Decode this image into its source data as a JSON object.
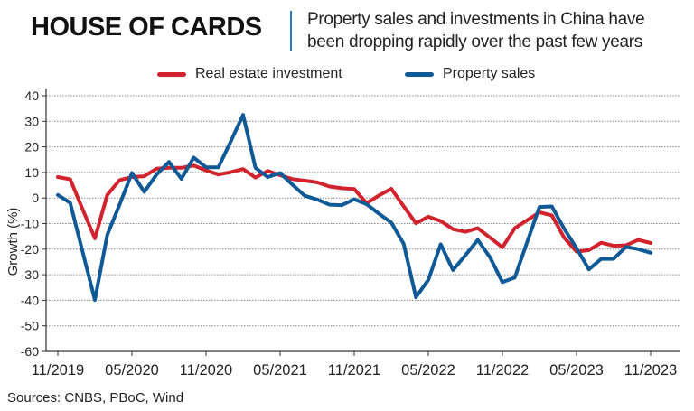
{
  "header": {
    "title": "HOUSE OF CARDS",
    "subtitle_line1": "Property sales and investments in China have",
    "subtitle_line2": "been dropping rapidly over the past few years"
  },
  "footer": {
    "source": "Sources: CNBS, PBoC, Wind"
  },
  "colors": {
    "real_estate": "#d2222d",
    "property_sales": "#0f5a96",
    "accent_line": "#2a7bbf"
  },
  "chart_data": {
    "type": "line",
    "title": "HOUSE OF CARDS",
    "ylabel": "Growth (%)",
    "xlabel": "",
    "ylim": [
      -60,
      40
    ],
    "yticks": [
      40,
      30,
      20,
      10,
      0,
      -10,
      -20,
      -30,
      -40,
      -50,
      -60
    ],
    "xtick_labels": [
      "11/2019",
      "05/2020",
      "11/2020",
      "05/2021",
      "11/2021",
      "05/2022",
      "11/2022",
      "05/2023",
      "11/2023"
    ],
    "x_start": "11/2019",
    "x_end": "11/2023",
    "x_frequency": "monthly",
    "grid": "horizontal dotted",
    "legend": "top-center",
    "series": [
      {
        "name": "Real estate investment",
        "color": "#d2222d",
        "values": [
          8.2,
          7.3,
          -4.3,
          -15.8,
          1.2,
          7,
          8.2,
          8.5,
          11.5,
          11.8,
          11.8,
          12.7,
          10.8,
          9.2,
          10.1,
          11.3,
          8,
          10.6,
          8.9,
          7.4,
          6.8,
          6.1,
          4.5,
          3.8,
          3.5,
          -2,
          1,
          3.6,
          -3.2,
          -9.9,
          -7.3,
          -9,
          -12.2,
          -13.2,
          -11.8,
          -15.5,
          -19.3,
          -11.8,
          -8.7,
          -5.6,
          -6.8,
          -15.5,
          -21,
          -20.4,
          -17.5,
          -18.7,
          -18.5,
          -16.4,
          -17.6
        ]
      },
      {
        "name": "Property sales",
        "color": "#0f5a96",
        "values": [
          1.2,
          -1.9,
          -20.9,
          -39.9,
          -14.4,
          -2.6,
          9.8,
          2.4,
          9.2,
          14.1,
          7.5,
          15.8,
          12,
          12,
          22.1,
          32.5,
          11.8,
          8.2,
          9.8,
          5.2,
          0.9,
          -0.6,
          -2.6,
          -2.8,
          -0.5,
          -2.4,
          -6.1,
          -9.6,
          -17.9,
          -38.8,
          -32,
          -18.1,
          -28.2,
          -22.4,
          -16.4,
          -23.2,
          -32.9,
          -31.1,
          -17.3,
          -3.5,
          -3.3,
          -12,
          -19.6,
          -27.9,
          -23.8,
          -23.8,
          -19.1,
          -20,
          -21.4
        ]
      }
    ]
  }
}
